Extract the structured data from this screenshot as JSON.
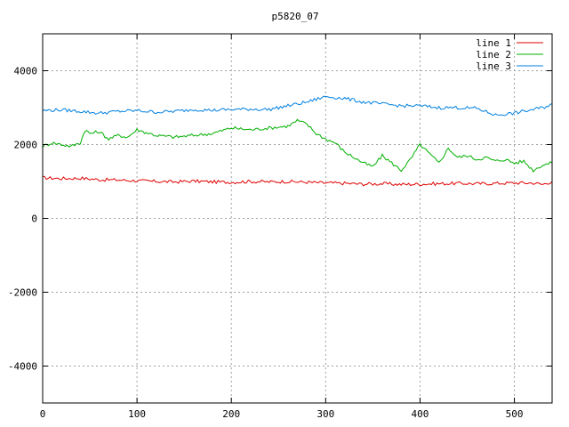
{
  "chart_data": {
    "type": "line",
    "title": "p5820_07",
    "xlabel": "",
    "ylabel": "",
    "xlim": [
      0,
      540
    ],
    "ylim": [
      -5000,
      5000
    ],
    "xticks": [
      0,
      100,
      200,
      300,
      400,
      500
    ],
    "yticks": [
      -4000,
      -2000,
      0,
      2000,
      4000
    ],
    "grid": true,
    "legend_position": "top-right",
    "series": [
      {
        "name": "line 1",
        "color": "#e00000",
        "x": [
          0,
          20,
          40,
          60,
          80,
          100,
          120,
          140,
          160,
          180,
          200,
          220,
          240,
          260,
          280,
          300,
          320,
          340,
          360,
          380,
          400,
          420,
          440,
          460,
          480,
          500,
          520,
          530,
          540
        ],
        "y": [
          1100,
          1080,
          1090,
          1050,
          1040,
          1020,
          1000,
          990,
          1010,
          990,
          980,
          1000,
          990,
          1000,
          980,
          960,
          950,
          930,
          940,
          920,
          930,
          940,
          950,
          940,
          950,
          960,
          960,
          920,
          1000
        ]
      },
      {
        "name": "line 2",
        "color": "#00b000",
        "x": [
          0,
          10,
          20,
          30,
          40,
          45,
          50,
          60,
          70,
          80,
          90,
          100,
          120,
          140,
          160,
          180,
          200,
          220,
          240,
          260,
          270,
          280,
          290,
          300,
          310,
          320,
          330,
          340,
          350,
          360,
          370,
          380,
          390,
          400,
          410,
          420,
          430,
          440,
          450,
          460,
          470,
          480,
          490,
          500,
          510,
          520,
          530,
          540
        ],
        "y": [
          1950,
          2050,
          2000,
          1950,
          2050,
          2400,
          2300,
          2350,
          2150,
          2250,
          2200,
          2400,
          2250,
          2200,
          2250,
          2300,
          2450,
          2400,
          2450,
          2500,
          2650,
          2550,
          2300,
          2150,
          2050,
          1800,
          1650,
          1500,
          1400,
          1700,
          1500,
          1300,
          1600,
          2000,
          1750,
          1500,
          1900,
          1650,
          1700,
          1600,
          1650,
          1550,
          1600,
          1500,
          1550,
          1300,
          1450,
          1500
        ]
      },
      {
        "name": "line 3",
        "color": "#0080e0",
        "x": [
          0,
          20,
          40,
          60,
          80,
          100,
          120,
          140,
          160,
          180,
          200,
          220,
          240,
          260,
          280,
          300,
          320,
          340,
          360,
          380,
          400,
          420,
          440,
          460,
          480,
          500,
          520,
          530,
          540
        ],
        "y": [
          2920,
          2940,
          2900,
          2850,
          2900,
          2920,
          2880,
          2900,
          2950,
          2930,
          2950,
          2960,
          2950,
          3050,
          3150,
          3300,
          3250,
          3150,
          3100,
          3050,
          3050,
          3000,
          3000,
          2980,
          2800,
          2850,
          2950,
          3000,
          3100
        ]
      }
    ]
  }
}
